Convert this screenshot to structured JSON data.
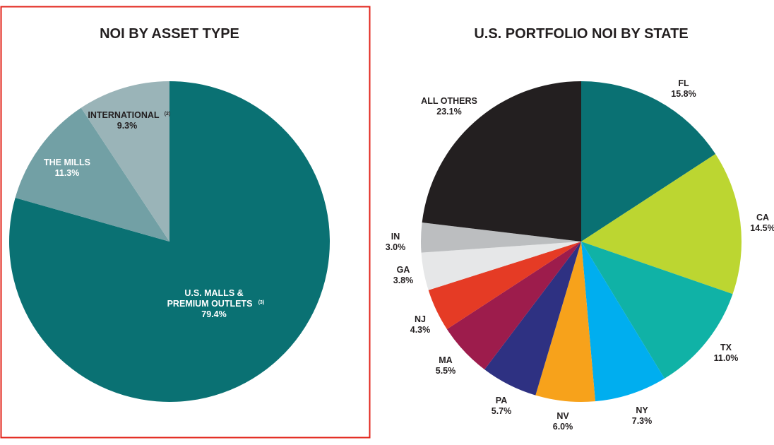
{
  "chart_data": [
    {
      "type": "pie",
      "title": "NOI BY ASSET TYPE",
      "slices": [
        {
          "name": "U.S. MALLS &",
          "name2": "PREMIUM OUTLETS",
          "note": "(3)",
          "value": 79.4,
          "value_label": "79.4%",
          "color": "#0a7173",
          "text_color": "#ffffff"
        },
        {
          "name": "THE MILLS",
          "note": "",
          "value": 11.3,
          "value_label": "11.3%",
          "color": "#72a0a5",
          "text_color": "#ffffff"
        },
        {
          "name": "INTERNATIONAL",
          "note": "(2)",
          "value": 9.3,
          "value_label": "9.3%",
          "color": "#9ab4b8",
          "text_color": "#231f20"
        }
      ]
    },
    {
      "type": "pie",
      "title": "U.S. PORTFOLIO NOI BY STATE",
      "slices": [
        {
          "name": "FL",
          "value": 15.8,
          "value_label": "15.8%",
          "color": "#0a7173"
        },
        {
          "name": "CA",
          "value": 14.5,
          "value_label": "14.5%",
          "color": "#bcd631"
        },
        {
          "name": "TX",
          "value": 11.0,
          "value_label": "11.0%",
          "color": "#10b2a6"
        },
        {
          "name": "NY",
          "value": 7.3,
          "value_label": "7.3%",
          "color": "#00aeef"
        },
        {
          "name": "NV",
          "value": 6.0,
          "value_label": "6.0%",
          "color": "#f7a21b"
        },
        {
          "name": "PA",
          "value": 5.7,
          "value_label": "5.7%",
          "color": "#2e3182"
        },
        {
          "name": "MA",
          "value": 5.5,
          "value_label": "5.5%",
          "color": "#9d1c4c"
        },
        {
          "name": "NJ",
          "value": 4.3,
          "value_label": "4.3%",
          "color": "#e53b25"
        },
        {
          "name": "GA",
          "value": 3.8,
          "value_label": "3.8%",
          "color": "#e6e7e8"
        },
        {
          "name": "IN",
          "value": 3.0,
          "value_label": "3.0%",
          "color": "#bcbec0"
        },
        {
          "name": "ALL OTHERS",
          "value": 23.1,
          "value_label": "23.1%",
          "color": "#231f20"
        }
      ]
    }
  ]
}
